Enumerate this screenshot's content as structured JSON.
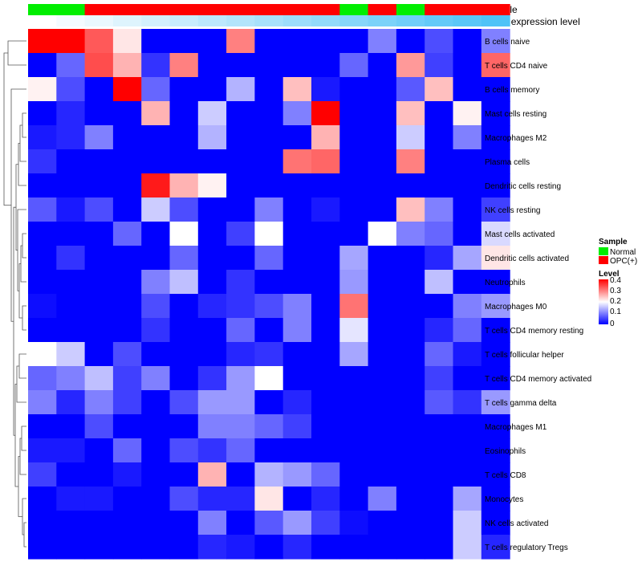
{
  "chart_data": {
    "type": "heatmap",
    "title": "",
    "annotation_tracks": [
      {
        "label": "Sample",
        "values": [
          "Normal",
          "Normal",
          "OPC(+)",
          "OPC(+)",
          "OPC(+)",
          "OPC(+)",
          "OPC(+)",
          "OPC(+)",
          "OPC(+)",
          "OPC(+)",
          "OPC(+)",
          "Normal",
          "OPC(+)",
          "Normal",
          "OPC(+)",
          "OPC(+)",
          "OPC(+)"
        ]
      },
      {
        "label": "Gene expression level",
        "values": [
          0.0,
          0.06,
          0.12,
          0.19,
          0.25,
          0.31,
          0.38,
          0.44,
          0.5,
          0.56,
          0.62,
          0.69,
          0.75,
          0.81,
          0.88,
          0.94,
          1.0
        ]
      }
    ],
    "columns": 17,
    "rows": [
      "B cells naive",
      "T cells CD4 naive",
      "B cells memory",
      "Mast cells resting",
      "Macrophages M2",
      "Plasma cells",
      "Dendritic cells resting",
      "NK cells resting",
      "Mast cells activated",
      "Dendritic cells activated",
      "Neutrophils",
      "Macrophages M0",
      "T cells CD4 memory resting",
      "T cells follicular helper",
      "T cells CD4 memory activated",
      "T cells gamma delta",
      "Macrophages M1",
      "Eosinophils",
      "T cells CD8",
      "Monocytes",
      "NK cells activated",
      "T cells regulatory  Tregs"
    ],
    "values": [
      [
        0.4,
        0.4,
        0.33,
        0.22,
        0,
        0,
        0,
        0.3,
        0,
        0,
        0,
        0,
        0.1,
        0,
        0.06,
        0,
        0.1
      ],
      [
        0,
        0.08,
        0.34,
        0.26,
        0.04,
        0.3,
        0,
        0,
        0,
        0,
        0,
        0.08,
        0,
        0.28,
        0.05,
        0,
        0.32
      ],
      [
        0.21,
        0.06,
        0,
        0.4,
        0.08,
        0,
        0,
        0.14,
        0,
        0.25,
        0.02,
        0,
        0,
        0.07,
        0.25,
        0,
        0
      ],
      [
        0,
        0.03,
        0,
        0,
        0.26,
        0,
        0.16,
        0,
        0,
        0.1,
        0.4,
        0,
        0,
        0.25,
        0,
        0.21,
        0
      ],
      [
        0.02,
        0.03,
        0.1,
        0,
        0,
        0,
        0.14,
        0,
        0,
        0,
        0.26,
        0,
        0,
        0.16,
        0,
        0.1,
        0
      ],
      [
        0.04,
        0,
        0,
        0,
        0,
        0,
        0,
        0,
        0,
        0.31,
        0.32,
        0,
        0,
        0.3,
        0,
        0,
        0
      ],
      [
        0,
        0,
        0,
        0,
        0.38,
        0.26,
        0.21,
        0,
        0,
        0,
        0,
        0,
        0,
        0,
        0,
        0,
        0
      ],
      [
        0.07,
        0.02,
        0.06,
        0,
        0.16,
        0.06,
        0,
        0,
        0.1,
        0,
        0.02,
        0,
        0,
        0.25,
        0.1,
        0,
        0.05
      ],
      [
        0,
        0,
        0,
        0.08,
        0,
        0.2,
        0,
        0.05,
        0.2,
        0,
        0,
        0,
        0.2,
        0.1,
        0.08,
        0,
        0.17
      ],
      [
        0,
        0.04,
        0,
        0,
        0,
        0.08,
        0,
        0,
        0.08,
        0,
        0,
        0.13,
        0,
        0,
        0.03,
        0.13,
        0.22
      ],
      [
        0,
        0,
        0,
        0,
        0.1,
        0.15,
        0,
        0.04,
        0,
        0,
        0,
        0.12,
        0,
        0,
        0.15,
        0,
        0
      ],
      [
        0.01,
        0,
        0,
        0,
        0.06,
        0,
        0.03,
        0.04,
        0.06,
        0.1,
        0,
        0.31,
        0,
        0,
        0,
        0.1,
        0.12
      ],
      [
        0,
        0,
        0,
        0,
        0.04,
        0,
        0,
        0.08,
        0,
        0.1,
        0,
        0.18,
        0,
        0,
        0.03,
        0.08,
        0
      ],
      [
        0.2,
        0.16,
        0,
        0.06,
        0,
        0,
        0,
        0.03,
        0.04,
        0,
        0,
        0.13,
        0,
        0,
        0.08,
        0.02,
        0
      ],
      [
        0.08,
        0.1,
        0.15,
        0.05,
        0.1,
        0,
        0.04,
        0.12,
        0.2,
        0,
        0,
        0,
        0,
        0,
        0.05,
        0,
        0
      ],
      [
        0.1,
        0.03,
        0.1,
        0.05,
        0,
        0.06,
        0.12,
        0.12,
        0,
        0.03,
        0,
        0,
        0,
        0,
        0.07,
        0.04,
        0.12
      ],
      [
        0,
        0,
        0.06,
        0,
        0,
        0,
        0.1,
        0.1,
        0.08,
        0.05,
        0,
        0,
        0,
        0,
        0,
        0,
        0
      ],
      [
        0.02,
        0.02,
        0,
        0.08,
        0,
        0.06,
        0.04,
        0.08,
        0,
        0,
        0,
        0,
        0,
        0,
        0,
        0,
        0
      ],
      [
        0.05,
        0,
        0,
        0.02,
        0,
        0,
        0.26,
        0,
        0.14,
        0.12,
        0.08,
        0,
        0,
        0,
        0,
        0,
        0
      ],
      [
        0,
        0.02,
        0.02,
        0,
        0,
        0.06,
        0.03,
        0.03,
        0.22,
        0,
        0.03,
        0,
        0.1,
        0,
        0,
        0.13,
        0
      ],
      [
        0,
        0,
        0,
        0,
        0,
        0,
        0.1,
        0,
        0.07,
        0.12,
        0.05,
        0.01,
        0,
        0,
        0,
        0.16,
        0
      ],
      [
        0,
        0,
        0,
        0,
        0,
        0,
        0.03,
        0.02,
        0,
        0.03,
        0,
        0,
        0,
        0,
        0,
        0.16,
        0.03
      ]
    ],
    "dendrogram": "row clustering shown on left",
    "legends": [
      {
        "title": "Sample",
        "items": [
          {
            "label": "Normal",
            "color": "#00ee00"
          },
          {
            "label": "OPC(+)",
            "color": "#ff0000"
          }
        ]
      },
      {
        "title": "Level",
        "ticks": [
          "0.4",
          "0.3",
          "0.2",
          "0.1",
          "0"
        ],
        "range": [
          0,
          0.4
        ]
      }
    ],
    "colors": {
      "low": "#0000ff",
      "mid": "#ffffff",
      "high": "#ff0000",
      "track_low": "#ffffff",
      "track_high": "#4fc3f7"
    },
    "xlabel": "",
    "ylabel": ""
  }
}
